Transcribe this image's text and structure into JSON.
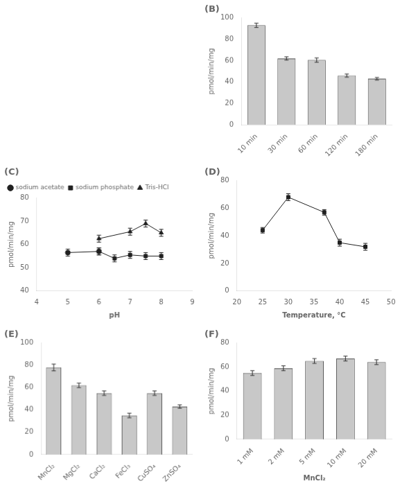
{
  "chart_data": [
    {
      "type": "bar",
      "title": "(B)",
      "categories": [
        "10 min",
        "30 min",
        "60 min",
        "120 min",
        "180 min"
      ],
      "values": [
        93,
        62,
        60.5,
        46,
        43
      ],
      "errors": [
        2.0,
        1.5,
        2.0,
        1.5,
        1.2
      ],
      "color": "#c8c8c8",
      "ylabel": "pmol/min/mg",
      "ylim": [
        0,
        100
      ],
      "yticks": [
        0,
        20,
        40,
        60,
        80,
        100
      ],
      "grid": false
    },
    {
      "type": "line",
      "title": "(C)",
      "series": [
        {
          "name": "sodium acetate",
          "color": "#202020",
          "marker": "circle",
          "x": [
            5.0,
            6.0
          ],
          "values": [
            56.5,
            57.0
          ],
          "errors": [
            1.5,
            1.5
          ]
        },
        {
          "name": "sodium phosphate",
          "color": "#202020",
          "marker": "square",
          "x": [
            6.0,
            6.5,
            7.0,
            7.5,
            8.0
          ],
          "values": [
            57.0,
            54.0,
            55.5,
            55.0,
            55.0
          ],
          "errors": [
            1.5,
            1.5,
            1.5,
            1.5,
            1.5
          ]
        },
        {
          "name": "Tris-HCl",
          "color": "#202020",
          "marker": "triangle",
          "x": [
            6.0,
            7.0,
            7.5,
            8.0
          ],
          "values": [
            62.5,
            65.5,
            69.0,
            65.0
          ],
          "errors": [
            1.5,
            1.5,
            1.5,
            1.5
          ]
        }
      ],
      "xlabel": "pH",
      "ylabel": "pmol/min/mg",
      "xlim": [
        4,
        9
      ],
      "xticks": [
        4,
        5,
        6,
        7,
        8,
        9
      ],
      "ylim": [
        40,
        80
      ],
      "yticks": [
        40,
        50,
        60,
        70,
        80
      ],
      "legend": "upper left",
      "grid": false
    },
    {
      "type": "line",
      "title": "(D)",
      "x": [
        25,
        30,
        37,
        40,
        45
      ],
      "values": [
        44,
        68,
        57,
        35,
        32
      ],
      "errors": [
        2.0,
        2.5,
        2.0,
        2.5,
        2.5
      ],
      "color": "#202020",
      "marker": "square",
      "xlabel": "Temperature, °C",
      "ylabel": "pmol/min/mg",
      "xlim": [
        20,
        50
      ],
      "xticks": [
        20,
        25,
        30,
        35,
        40,
        45,
        50
      ],
      "ylim": [
        0,
        80
      ],
      "yticks": [
        0,
        20,
        40,
        60,
        80
      ],
      "grid": false
    },
    {
      "type": "bar",
      "title": "(E)",
      "categories": [
        "MnCl₂",
        "MgCl₂",
        "CaCl₂",
        "FeCl₃",
        "CuSO₄",
        "ZnSO₄"
      ],
      "values": [
        78,
        62,
        55,
        35,
        55,
        43
      ],
      "errors": [
        3.0,
        2.0,
        2.0,
        2.0,
        2.0,
        1.5
      ],
      "color": "#c8c8c8",
      "ylabel": "pmol/min/mg",
      "ylim": [
        0,
        100
      ],
      "yticks": [
        0,
        20,
        40,
        60,
        80,
        100
      ],
      "grid": false
    },
    {
      "type": "bar",
      "title": "(F)",
      "categories": [
        "1 mM",
        "2 mM",
        "5 mM",
        "10 mM",
        "20 mM"
      ],
      "values": [
        55,
        59,
        65,
        67,
        64
      ],
      "errors": [
        2.0,
        2.0,
        2.0,
        2.0,
        2.0
      ],
      "color": "#c8c8c8",
      "xlabel": "MnCl₂",
      "ylabel": "pmol/min/mg",
      "ylim": [
        0,
        80
      ],
      "yticks": [
        0,
        20,
        40,
        60,
        80
      ],
      "grid": false
    }
  ]
}
